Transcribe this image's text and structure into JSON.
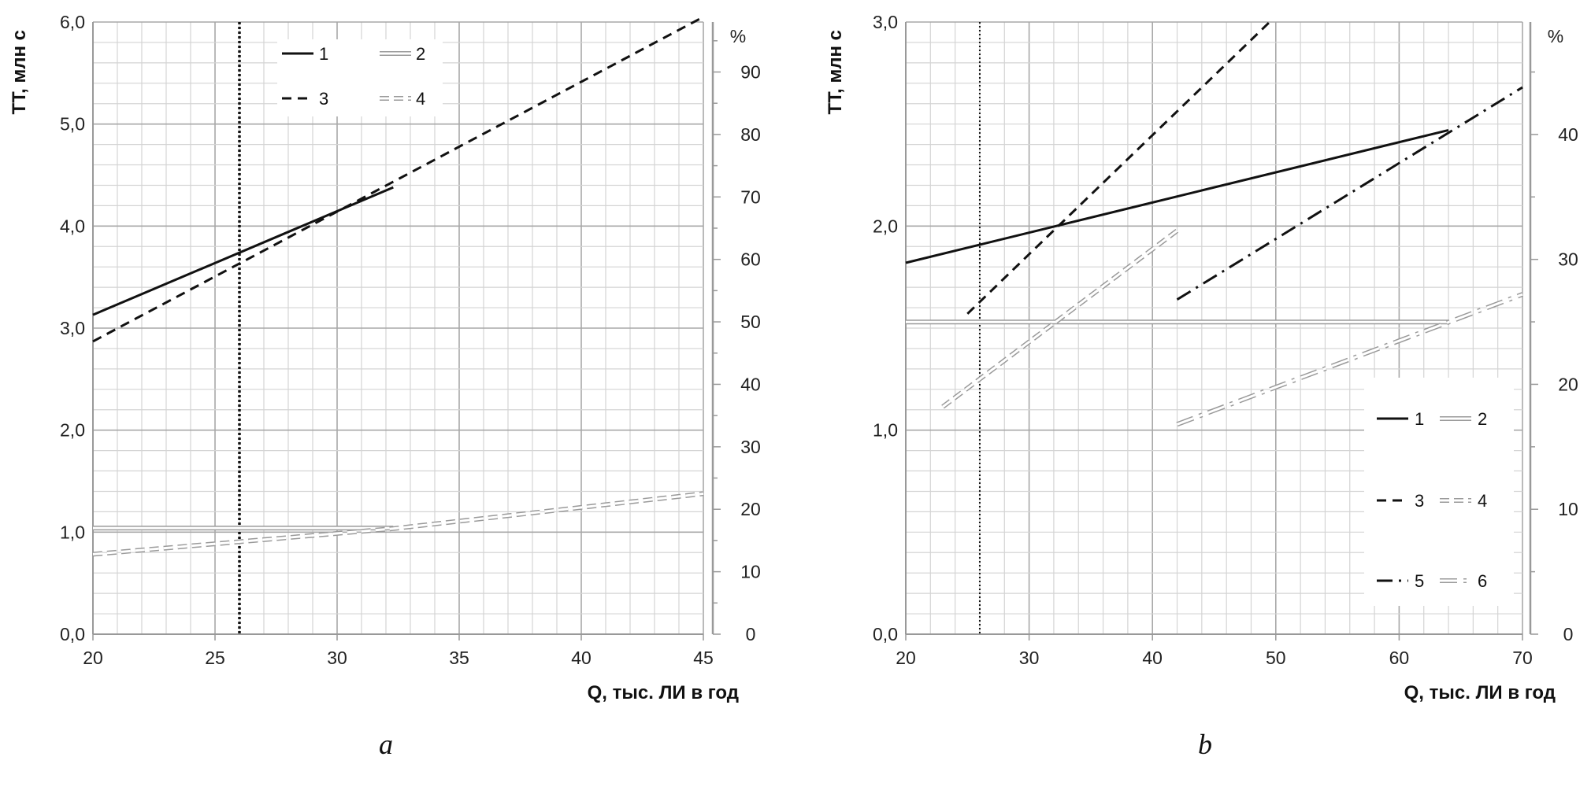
{
  "chart_data": [
    {
      "type": "line",
      "panel_label": "a",
      "xlabel": "Q, тыс. ЛИ в год",
      "ylabel": "TT, млн с",
      "y2label": "%",
      "xlim": [
        20,
        45
      ],
      "ylim": [
        0,
        6
      ],
      "y2lim": [
        0,
        98
      ],
      "xticks": [
        "20",
        "25",
        "30",
        "35",
        "40",
        "45"
      ],
      "yticks": [
        "0,0",
        "1,0",
        "2,0",
        "3,0",
        "4,0",
        "5,0",
        "6,0"
      ],
      "y2ticks": [
        "0",
        "10",
        "20",
        "30",
        "40",
        "50",
        "60",
        "70",
        "80",
        "90"
      ],
      "vline_x": 26,
      "grid": true,
      "legend_position": "top",
      "legend": [
        "1",
        "2",
        "3",
        "4"
      ],
      "series": [
        {
          "name": "1",
          "style": "solid",
          "axis": "left",
          "x": [
            20,
            32.3
          ],
          "y": [
            3.13,
            4.38
          ]
        },
        {
          "name": "2",
          "style": "double",
          "axis": "left",
          "x": [
            20,
            32.3
          ],
          "y": [
            1.04,
            1.04
          ]
        },
        {
          "name": "3",
          "style": "dashed",
          "axis": "left",
          "x": [
            20,
            45
          ],
          "y": [
            2.87,
            6.05
          ]
        },
        {
          "name": "4",
          "style": "double-dashed",
          "axis": "right",
          "x": [
            20,
            32.3,
            45
          ],
          "y": [
            12.8,
            16.9,
            22.5
          ]
        }
      ]
    },
    {
      "type": "line",
      "panel_label": "b",
      "xlabel": "Q, тыс. ЛИ в год",
      "ylabel": "TT, млн с",
      "y2label": "%",
      "xlim": [
        20,
        70
      ],
      "ylim": [
        0,
        3
      ],
      "y2lim": [
        0,
        49
      ],
      "xticks": [
        "20",
        "30",
        "40",
        "50",
        "60",
        "70"
      ],
      "yticks": [
        "0,0",
        "1,0",
        "2,0",
        "3,0"
      ],
      "y2ticks": [
        "0",
        "10",
        "20",
        "30",
        "40"
      ],
      "vline_x": 26,
      "grid": true,
      "legend_position": "bottom-right",
      "legend": [
        "1",
        "2",
        "3",
        "4",
        "5",
        "6"
      ],
      "series": [
        {
          "name": "1",
          "style": "solid",
          "axis": "left",
          "x": [
            20,
            64
          ],
          "y": [
            1.82,
            2.47
          ]
        },
        {
          "name": "2",
          "style": "double",
          "axis": "left",
          "x": [
            20,
            64
          ],
          "y": [
            1.53,
            1.53
          ]
        },
        {
          "name": "3",
          "style": "dashed",
          "axis": "left",
          "x": [
            25,
            49.5
          ],
          "y": [
            1.57,
            3.0
          ]
        },
        {
          "name": "4",
          "style": "double-dashed",
          "axis": "right",
          "x": [
            23,
            42
          ],
          "y": [
            18.2,
            32.3
          ]
        },
        {
          "name": "5",
          "style": "dash-dot",
          "axis": "left",
          "x": [
            42,
            70
          ],
          "y": [
            1.64,
            2.68
          ]
        },
        {
          "name": "6",
          "style": "double-dash-dot",
          "axis": "right",
          "x": [
            42,
            70
          ],
          "y": [
            16.8,
            27.2
          ]
        }
      ]
    }
  ]
}
